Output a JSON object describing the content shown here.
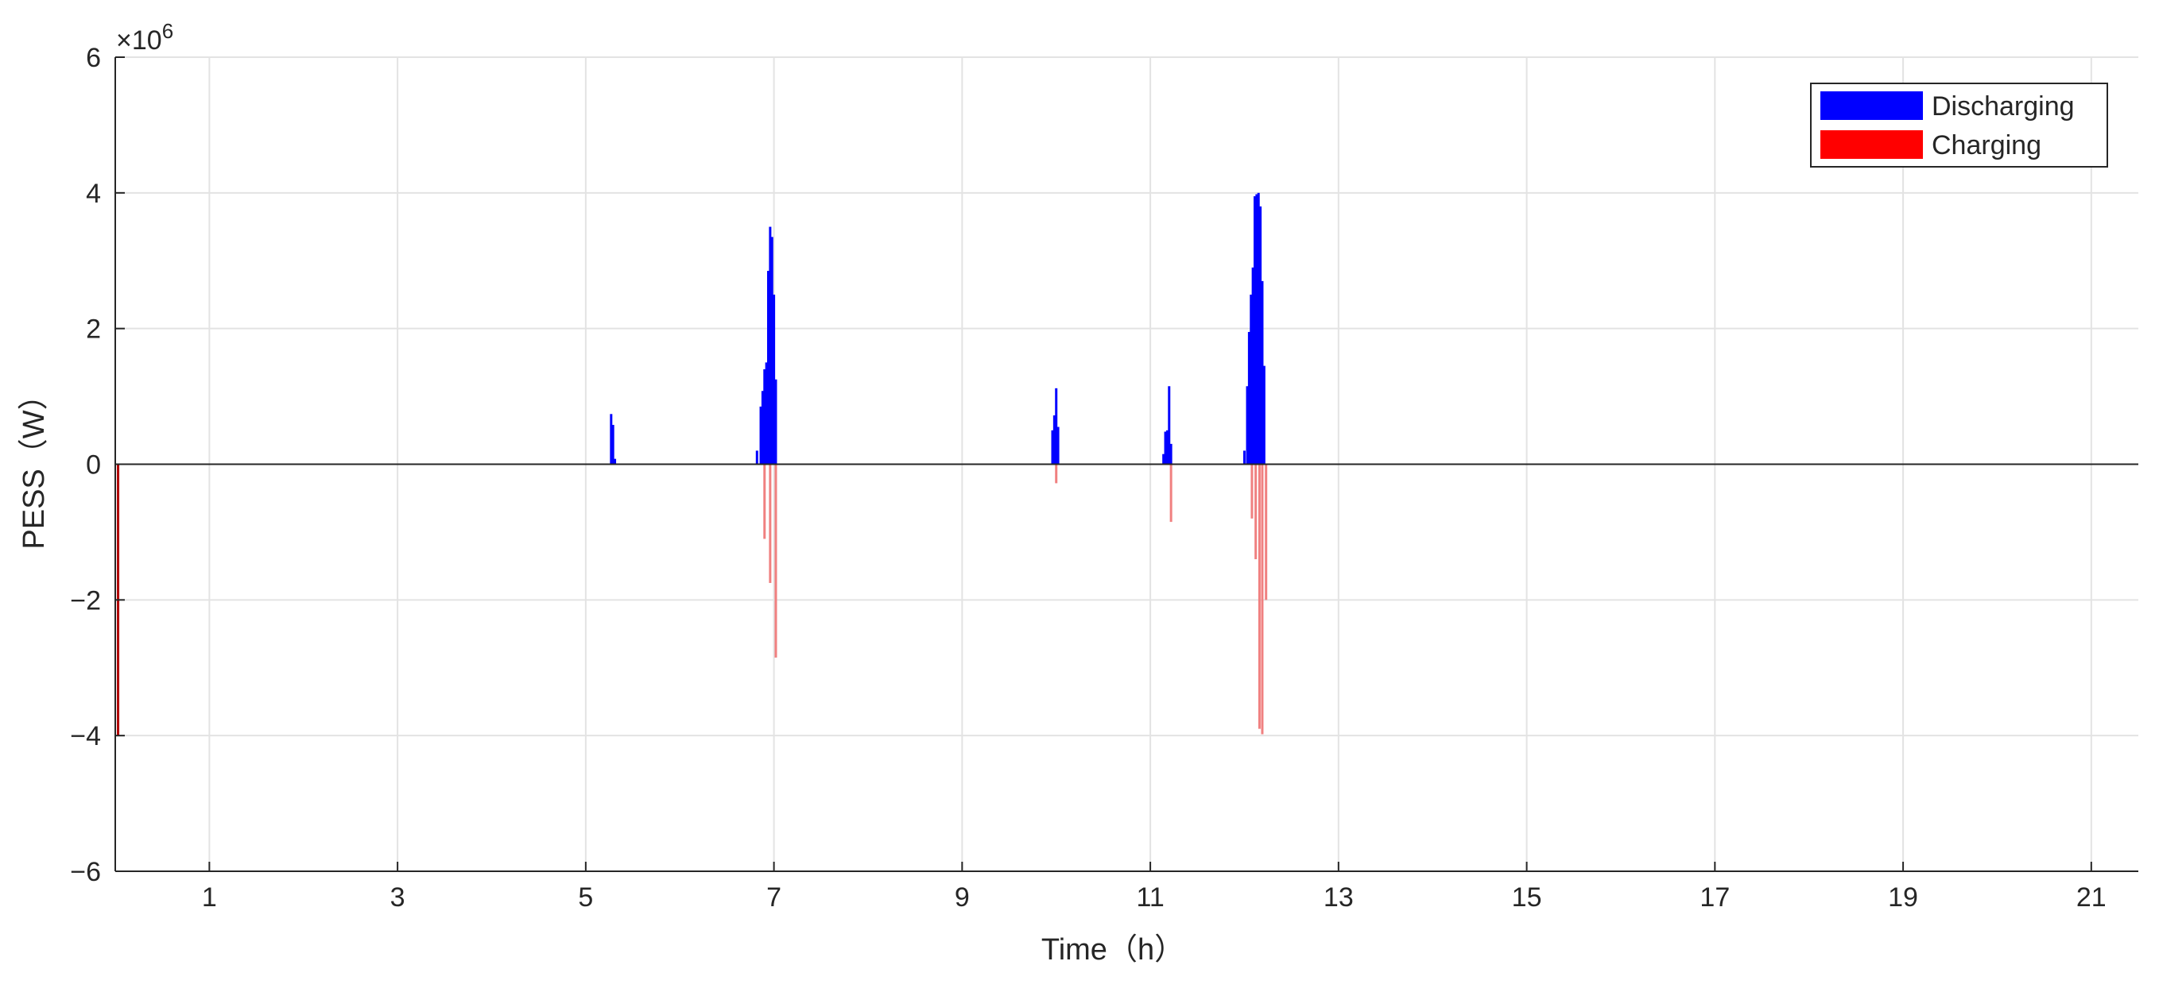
{
  "chart_data": {
    "type": "bar",
    "xlabel": "Time（h）",
    "ylabel": "PESS（W）",
    "exponent_base": "×10",
    "exponent_power": "6",
    "xlim": [
      0,
      21.5
    ],
    "ylim": [
      -6,
      6
    ],
    "x_ticks": [
      1,
      3,
      5,
      7,
      9,
      11,
      13,
      15,
      17,
      19,
      21
    ],
    "y_ticks": [
      -6,
      -4,
      -2,
      0,
      2,
      4,
      6
    ],
    "y_tick_labels": [
      "−6",
      "−4",
      "−2",
      "0",
      "2",
      "4",
      "6"
    ],
    "grid": true,
    "legend_position": "top-right",
    "series": [
      {
        "name": "Discharging",
        "color": "#0000ff",
        "points": [
          [
            5.27,
            0.74
          ],
          [
            5.29,
            0.58
          ],
          [
            5.31,
            0.08
          ],
          [
            6.82,
            0.2
          ],
          [
            6.86,
            0.85
          ],
          [
            6.88,
            1.08
          ],
          [
            6.9,
            1.4
          ],
          [
            6.92,
            1.5
          ],
          [
            6.94,
            2.85
          ],
          [
            6.96,
            3.5
          ],
          [
            6.98,
            3.35
          ],
          [
            7.0,
            2.5
          ],
          [
            7.02,
            1.25
          ],
          [
            9.96,
            0.5
          ],
          [
            9.98,
            0.72
          ],
          [
            10.0,
            1.12
          ],
          [
            10.02,
            0.55
          ],
          [
            11.14,
            0.15
          ],
          [
            11.16,
            0.48
          ],
          [
            11.18,
            0.5
          ],
          [
            11.2,
            1.15
          ],
          [
            11.22,
            0.3
          ],
          [
            12.0,
            0.2
          ],
          [
            12.03,
            1.15
          ],
          [
            12.05,
            1.95
          ],
          [
            12.07,
            2.5
          ],
          [
            12.09,
            2.9
          ],
          [
            12.11,
            3.95
          ],
          [
            12.13,
            3.98
          ],
          [
            12.15,
            4.0
          ],
          [
            12.17,
            3.8
          ],
          [
            12.19,
            2.7
          ],
          [
            12.21,
            1.45
          ]
        ]
      },
      {
        "name": "Charging",
        "color": "#ff0000",
        "points": [
          [
            0.03,
            -4.0
          ],
          [
            6.9,
            -1.1
          ],
          [
            6.96,
            -1.75
          ],
          [
            7.02,
            -2.85
          ],
          [
            10.0,
            -0.28
          ],
          [
            11.22,
            -0.85
          ],
          [
            12.08,
            -0.8
          ],
          [
            12.12,
            -1.4
          ],
          [
            12.16,
            -3.9
          ],
          [
            12.19,
            -3.98
          ],
          [
            12.23,
            -2.0
          ]
        ]
      }
    ]
  }
}
